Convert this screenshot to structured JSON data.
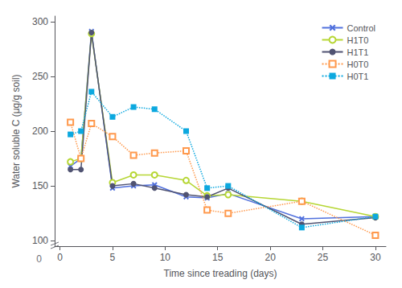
{
  "chart_data": {
    "type": "line",
    "xlabel": "Time since treading (days)",
    "ylabel": "Water soluble C (μg/g soil)",
    "x": [
      1,
      2,
      3,
      5,
      7,
      9,
      12,
      14,
      16,
      23,
      30
    ],
    "series": [
      {
        "name": "Control",
        "marker": "x",
        "line_style": "solid",
        "values": [
          168,
          175,
          291,
          148,
          150,
          151,
          140,
          139,
          143,
          120,
          122
        ]
      },
      {
        "name": "H1T0",
        "marker": "circle-open",
        "line_style": "solid",
        "values": [
          172,
          175,
          289,
          153,
          160,
          160,
          155,
          141,
          142,
          136,
          122
        ]
      },
      {
        "name": "H1T1",
        "marker": "circle",
        "line_style": "solid",
        "values": [
          165,
          165,
          290,
          150,
          152,
          148,
          142,
          140,
          148,
          115,
          121
        ]
      },
      {
        "name": "H0T0",
        "marker": "square-open",
        "line_style": "dotted",
        "values": [
          208,
          175,
          207,
          195,
          178,
          180,
          182,
          128,
          125,
          136,
          105
        ]
      },
      {
        "name": "H0T1",
        "marker": "square",
        "line_style": "dotted",
        "values": [
          197,
          200,
          236,
          213,
          222,
          220,
          200,
          148,
          150,
          112,
          122
        ]
      }
    ],
    "xlim": [
      -0.5,
      31
    ],
    "xticks": [
      0,
      5,
      10,
      15,
      20,
      25,
      30
    ],
    "ylim": [
      95,
      305
    ],
    "yticks": [
      100,
      150,
      200,
      250,
      300
    ],
    "annotations": [
      "0"
    ],
    "grid": false,
    "legend": "upper right"
  }
}
